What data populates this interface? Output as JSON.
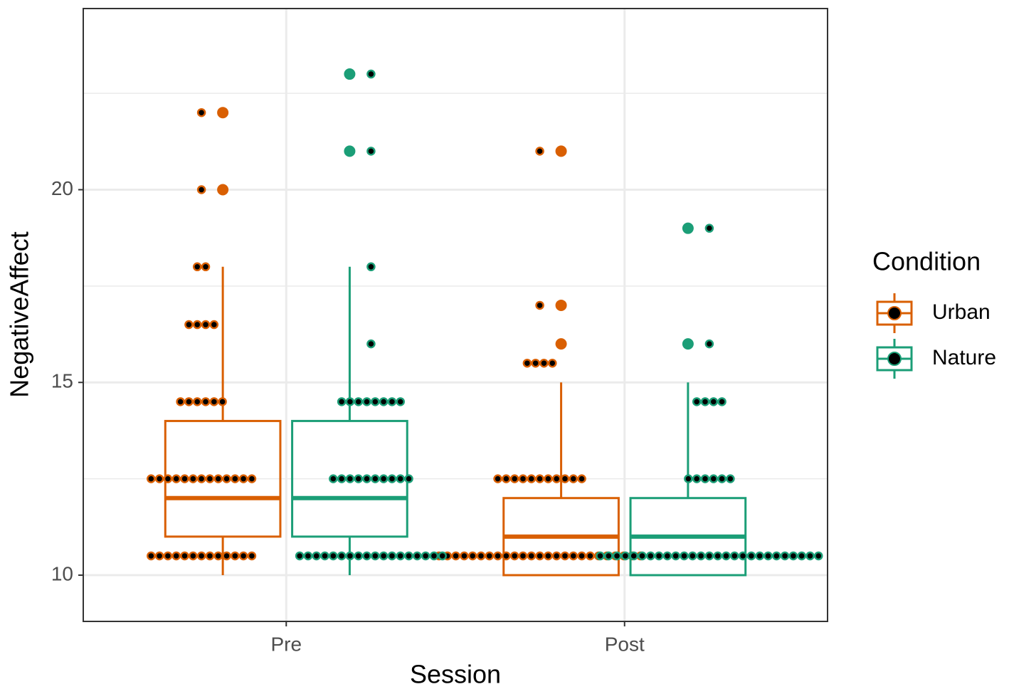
{
  "chart_data": {
    "type": "box",
    "x_label": "Session",
    "y_label": "NegativeAffect",
    "categories": [
      "Pre",
      "Post"
    ],
    "ylim": [
      8.8,
      24.7
    ],
    "yticks": [
      10,
      15,
      20
    ],
    "minor_yticks": [
      12.5,
      17.5,
      22.5
    ],
    "grid": true,
    "legend_title": "Condition",
    "legend_position": "right",
    "series": [
      {
        "name": "Urban",
        "color": "#d95f02",
        "boxes": [
          {
            "low": 10,
            "q1": 11,
            "median": 12,
            "q3": 14,
            "high": 18
          },
          {
            "low": 10,
            "q1": 10,
            "median": 11,
            "q3": 12,
            "high": 15
          }
        ],
        "outliers": [
          [
            20,
            22
          ],
          [
            16,
            17,
            21
          ]
        ],
        "dots": [
          [
            {
              "value": 22,
              "count": 1
            },
            {
              "value": 20,
              "count": 1
            },
            {
              "value": 18,
              "count": 2
            },
            {
              "value": 16.5,
              "count": 4
            },
            {
              "value": 14.5,
              "count": 6
            },
            {
              "value": 12.5,
              "count": 13
            },
            {
              "value": 10.5,
              "count": 13
            }
          ],
          [
            {
              "value": 21,
              "count": 1
            },
            {
              "value": 17,
              "count": 1
            },
            {
              "value": 15.5,
              "count": 4
            },
            {
              "value": 12.5,
              "count": 11
            },
            {
              "value": 10.5,
              "count": 25
            }
          ]
        ]
      },
      {
        "name": "Nature",
        "color": "#1b9e77",
        "boxes": [
          {
            "low": 10,
            "q1": 11,
            "median": 12,
            "q3": 14,
            "high": 18
          },
          {
            "low": 10,
            "q1": 10,
            "median": 11,
            "q3": 12,
            "high": 15
          }
        ],
        "outliers": [
          [
            21,
            23
          ],
          [
            16,
            19
          ]
        ],
        "dots": [
          [
            {
              "value": 23,
              "count": 1
            },
            {
              "value": 21,
              "count": 1
            },
            {
              "value": 18,
              "count": 1
            },
            {
              "value": 16,
              "count": 1
            },
            {
              "value": 14.5,
              "count": 8
            },
            {
              "value": 12.5,
              "count": 10
            },
            {
              "value": 10.5,
              "count": 18
            }
          ],
          [
            {
              "value": 19,
              "count": 1
            },
            {
              "value": 16,
              "count": 1
            },
            {
              "value": 14.5,
              "count": 4
            },
            {
              "value": 12.5,
              "count": 6
            },
            {
              "value": 10.5,
              "count": 27
            }
          ]
        ]
      }
    ]
  }
}
